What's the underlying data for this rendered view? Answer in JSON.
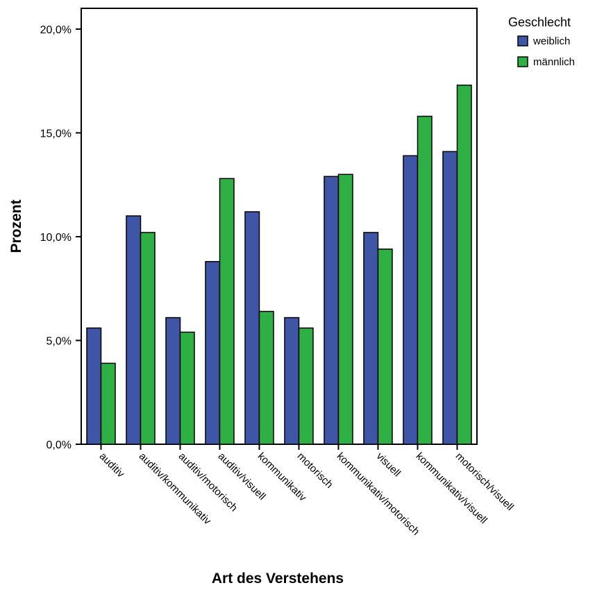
{
  "chart_data": {
    "type": "bar",
    "title": "",
    "xlabel": "Art des Verstehens",
    "ylabel": "Prozent",
    "categories": [
      "auditiv",
      "auditiv/kommunikativ",
      "auditiv/motorisch",
      "auditiv/visuell",
      "kommunikativ",
      "motorisch",
      "kommunikativ/motorisch",
      "visuell",
      "kommunikativ/visuell",
      "motorisch/visuell"
    ],
    "series": [
      {
        "name": "weiblich",
        "color": "#3F56A6",
        "values": [
          5.6,
          11.0,
          6.1,
          8.8,
          11.2,
          6.1,
          12.9,
          10.2,
          13.9,
          14.1
        ]
      },
      {
        "name": "männlich",
        "color": "#2FB045",
        "values": [
          3.9,
          10.2,
          5.4,
          12.8,
          6.4,
          5.6,
          13.0,
          9.4,
          15.8,
          17.3
        ]
      }
    ],
    "ylim": [
      0,
      21
    ],
    "yticks": [
      0,
      5,
      10,
      15,
      20
    ],
    "ytick_labels": [
      "0,0%",
      "5,0%",
      "10,0%",
      "15,0%",
      "20,0%"
    ],
    "legend": {
      "title": "Geschlecht",
      "position": "top-right"
    },
    "grid": false
  }
}
